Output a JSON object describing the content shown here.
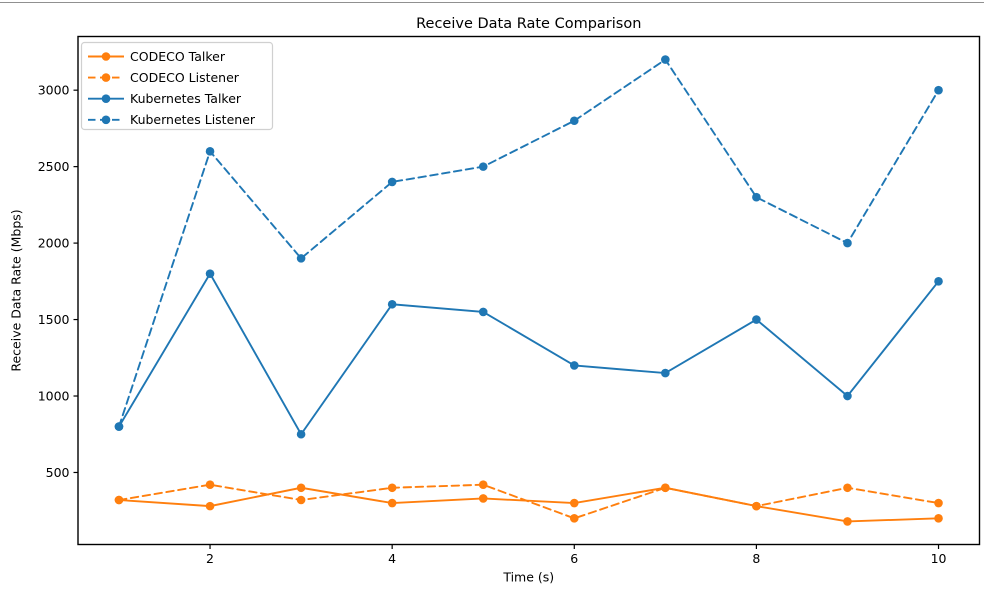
{
  "figure": {
    "background": "#ffffff",
    "top_edge_color": "#909090"
  },
  "chart_data": {
    "type": "line",
    "title": "Receive Data Rate Comparison",
    "xlabel": "Time (s)",
    "ylabel": "Receive Data Rate (Mbps)",
    "x": [
      1,
      2,
      3,
      4,
      5,
      6,
      7,
      8,
      9,
      10
    ],
    "series": [
      {
        "name": "CODECO Talker",
        "color": "#ff7f0e",
        "linestyle": "solid",
        "marker": "circle",
        "values": [
          320,
          280,
          400,
          300,
          330,
          300,
          400,
          280,
          180,
          200
        ]
      },
      {
        "name": "CODECO Listener",
        "color": "#ff7f0e",
        "linestyle": "dashed",
        "marker": "circle",
        "values": [
          320,
          420,
          320,
          400,
          420,
          200,
          400,
          280,
          400,
          300
        ]
      },
      {
        "name": "Kubernetes Talker",
        "color": "#1f77b4",
        "linestyle": "solid",
        "marker": "circle",
        "values": [
          800,
          1800,
          750,
          1600,
          1550,
          1200,
          1150,
          1500,
          1000,
          1750
        ]
      },
      {
        "name": "Kubernetes Listener",
        "color": "#1f77b4",
        "linestyle": "dashed",
        "marker": "circle",
        "values": [
          800,
          2600,
          1900,
          2400,
          2500,
          2800,
          3200,
          2300,
          2000,
          3000
        ]
      }
    ],
    "xticks": [
      2,
      4,
      6,
      8,
      10
    ],
    "yticks": [
      500,
      1000,
      1500,
      2000,
      2500,
      3000
    ],
    "xlim": [
      0.55,
      10.45
    ],
    "ylim": [
      29,
      3351
    ],
    "grid": false,
    "legend_position": "upper-left",
    "axis_color": "#000000",
    "legend_border_color": "#d0d0d0"
  }
}
